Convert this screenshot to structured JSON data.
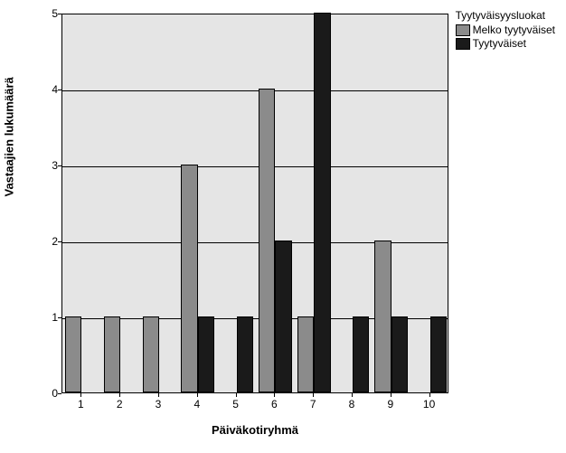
{
  "chart": {
    "type": "bar",
    "x_label": "Päiväkotiryhmä",
    "y_label": "Vastaajien lukumäärä",
    "label_fontsize": 13,
    "tick_fontsize": 12,
    "background_color": "#ffffff",
    "plot_background_color": "#e5e5e5",
    "grid_color": "#000000",
    "border_color": "#000000",
    "ylim": [
      0,
      5
    ],
    "ytick_step": 1,
    "yticks": [
      0,
      1,
      2,
      3,
      4,
      5
    ],
    "categories": [
      "1",
      "2",
      "3",
      "4",
      "5",
      "6",
      "7",
      "8",
      "9",
      "10"
    ],
    "series": [
      {
        "name": "Melko tyytyväiset",
        "color": "#8b8b8b",
        "values": [
          1,
          1,
          1,
          3,
          0,
          4,
          1,
          0,
          2,
          0
        ]
      },
      {
        "name": "Tyytyväiset",
        "color": "#1a1a1a",
        "values": [
          0,
          0,
          0,
          1,
          1,
          2,
          5,
          1,
          1,
          1
        ]
      }
    ],
    "legend": {
      "title": "Tyytyväisyysluokat",
      "position": "right-top"
    },
    "bar_width_ratio": 0.43,
    "group_gap_ratio": 0.14
  }
}
